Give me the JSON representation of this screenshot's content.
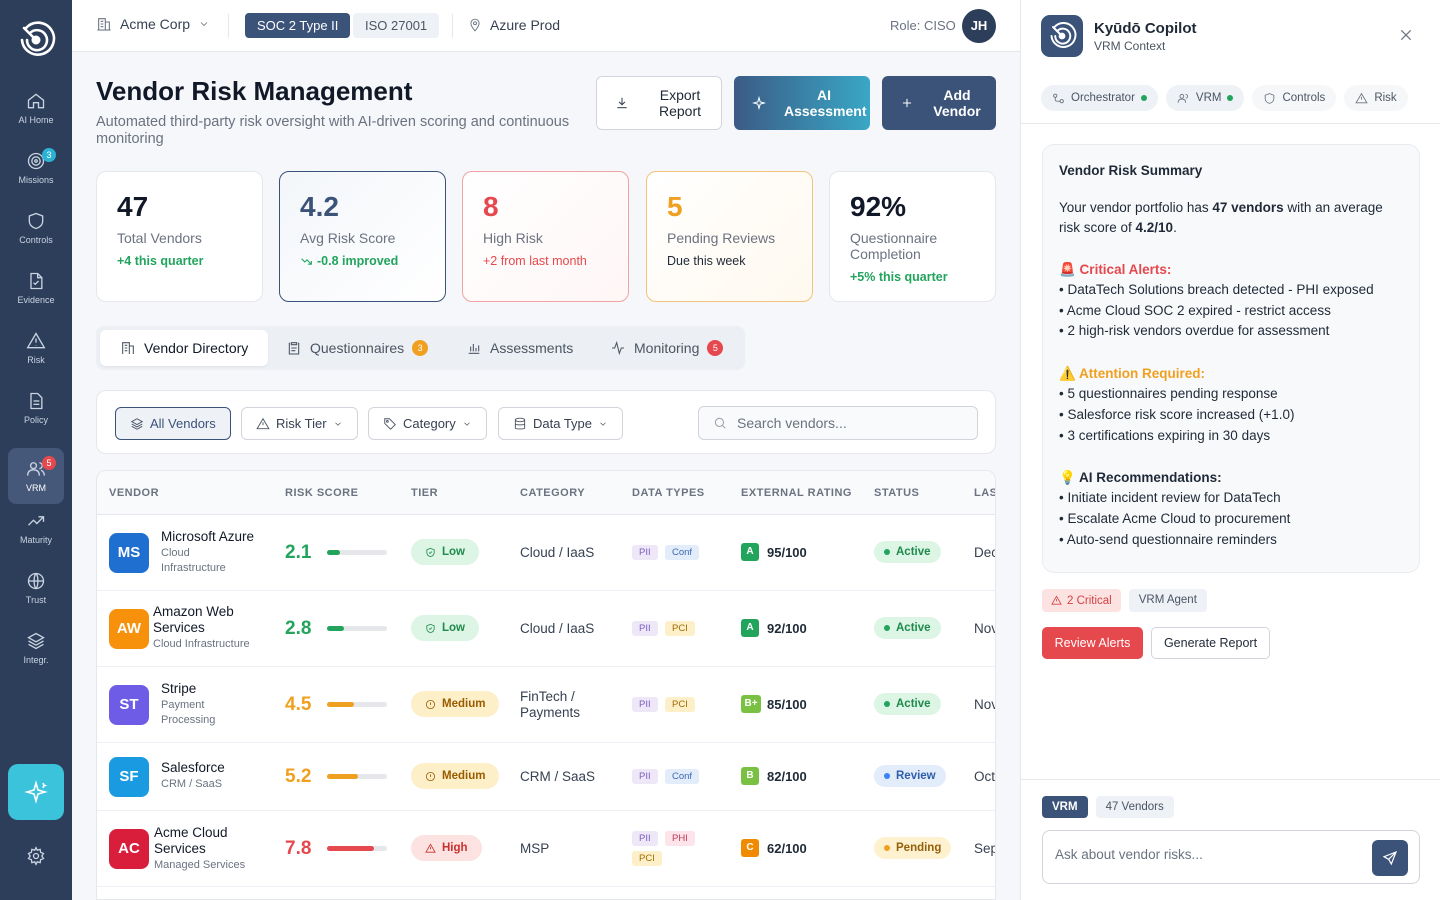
{
  "sidebar": {
    "items": [
      {
        "label": "AI Home",
        "icon": "home-icon"
      },
      {
        "label": "Missions",
        "icon": "target-icon",
        "badge": "3"
      },
      {
        "label": "Controls",
        "icon": "shield-icon"
      },
      {
        "label": "Evidence",
        "icon": "file-icon"
      },
      {
        "label": "Risk",
        "icon": "warning-icon"
      },
      {
        "label": "Policy",
        "icon": "document-icon"
      },
      {
        "label": "VRM",
        "icon": "users-icon",
        "badge": "5",
        "active": true
      },
      {
        "label": "Maturity",
        "icon": "trend-icon"
      },
      {
        "label": "Trust",
        "icon": "globe-icon"
      },
      {
        "label": "Integr.",
        "icon": "layers-icon"
      }
    ]
  },
  "topbar": {
    "org": "Acme Corp",
    "framework_active": "SOC 2 Type II",
    "framework_other": "ISO 27001",
    "environment": "Azure Prod",
    "role": "Role: CISO",
    "avatar": "JH"
  },
  "page": {
    "title": "Vendor Risk Management",
    "subtitle": "Automated third-party risk oversight with AI-driven scoring and continuous monitoring",
    "export_label": "Export Report",
    "ai_label": "AI Assessment",
    "add_label": "Add Vendor"
  },
  "kpis": [
    {
      "value": "47",
      "label": "Total Vendors",
      "delta": "+4 this quarter"
    },
    {
      "value": "4.2",
      "label": "Avg Risk Score",
      "delta": "-0.8 improved"
    },
    {
      "value": "8",
      "label": "High Risk",
      "delta": "+2 from last month"
    },
    {
      "value": "5",
      "label": "Pending Reviews",
      "delta": "Due this week"
    },
    {
      "value": "92%",
      "label": "Questionnaire Completion",
      "delta": "+5% this quarter"
    }
  ],
  "tabs": [
    {
      "label": "Vendor Directory"
    },
    {
      "label": "Questionnaires",
      "count": "3"
    },
    {
      "label": "Assessments"
    },
    {
      "label": "Monitoring",
      "count": "5"
    }
  ],
  "filters": {
    "all": "All Vendors",
    "risk_tier": "Risk Tier",
    "category": "Category",
    "data_type": "Data Type",
    "search_placeholder": "Search vendors..."
  },
  "table": {
    "headers": [
      "VENDOR",
      "RISK SCORE",
      "TIER",
      "CATEGORY",
      "DATA TYPES",
      "EXTERNAL RATING",
      "STATUS",
      "LAST"
    ],
    "rows": [
      {
        "initials": "MS",
        "color": "#1f6fd1",
        "name": "Microsoft Azure",
        "sub": "Cloud Infrastructure",
        "score": "2.1",
        "score_fraction": 0.21,
        "score_color": "#22a45d",
        "tier": "Low",
        "category": "Cloud / IaaS",
        "data_types": [
          "PII",
          "Conf"
        ],
        "grade": "A",
        "grade_color": "#22a45d",
        "rating": "95/100",
        "status": "Active",
        "last": "Dec"
      },
      {
        "initials": "AW",
        "color": "#f7900a",
        "name": "Amazon Web Services",
        "sub": "Cloud Infrastructure",
        "score": "2.8",
        "score_fraction": 0.28,
        "score_color": "#22a45d",
        "tier": "Low",
        "category": "Cloud / IaaS",
        "data_types": [
          "PII",
          "PCI"
        ],
        "grade": "A",
        "grade_color": "#22a45d",
        "rating": "92/100",
        "status": "Active",
        "last": "Nov"
      },
      {
        "initials": "ST",
        "color": "#6e5ce6",
        "name": "Stripe",
        "sub": "Payment Processing",
        "score": "4.5",
        "score_fraction": 0.45,
        "score_color": "#f0a020",
        "tier": "Medium",
        "category": "FinTech / Payments",
        "data_types": [
          "PII",
          "PCI"
        ],
        "grade": "B+",
        "grade_color": "#7ac143",
        "rating": "85/100",
        "status": "Active",
        "last": "Nov"
      },
      {
        "initials": "SF",
        "color": "#1a9ae0",
        "name": "Salesforce",
        "sub": "CRM / SaaS",
        "score": "5.2",
        "score_fraction": 0.52,
        "score_color": "#f0a020",
        "tier": "Medium",
        "category": "CRM / SaaS",
        "data_types": [
          "PII",
          "Conf"
        ],
        "grade": "B",
        "grade_color": "#7ac143",
        "rating": "82/100",
        "status": "Review",
        "last": "Oct"
      },
      {
        "initials": "AC",
        "color": "#d91e3c",
        "name": "Acme Cloud Services",
        "sub": "Managed Services",
        "score": "7.8",
        "score_fraction": 0.78,
        "score_color": "#e5484d",
        "tier": "High",
        "category": "MSP",
        "data_types": [
          "PII",
          "PHI",
          "PCI"
        ],
        "grade": "C",
        "grade_color": "#f08a00",
        "rating": "62/100",
        "status": "Pending",
        "last": "Sep"
      }
    ]
  },
  "copilot": {
    "title": "Kyūdō Copilot",
    "subtitle": "VRM Context",
    "agents": [
      "Orchestrator",
      "VRM",
      "Controls",
      "Risk"
    ],
    "summary_title": "Vendor Risk Summary",
    "intro_a": "Your vendor portfolio has ",
    "intro_b": "47 vendors",
    "intro_c": " with an average risk score of ",
    "intro_d": "4.2/10",
    "intro_e": ".",
    "critical_title": "🚨 Critical Alerts:",
    "critical": [
      "• DataTech Solutions breach detected - PHI exposed",
      "• Acme Cloud SOC 2 expired - restrict access",
      "• 2 high-risk vendors overdue for assessment"
    ],
    "attention_title": "⚠️ Attention Required:",
    "attention": [
      "• 5 questionnaires pending response",
      "• Salesforce risk score increased (+1.0)",
      "• 3 certifications expiring in 30 days"
    ],
    "rec_title": "💡 AI Recommendations:",
    "recs": [
      "• Initiate incident review for DataTech",
      "• Escalate Acme Cloud to procurement",
      "• Auto-send questionnaire reminders"
    ],
    "tag_critical": "2 Critical",
    "tag_agent": "VRM Agent",
    "btn_review": "Review Alerts",
    "btn_report": "Generate Report",
    "ctx_vrm": "VRM",
    "ctx_count": "47 Vendors",
    "ask_placeholder": "Ask about vendor risks..."
  }
}
